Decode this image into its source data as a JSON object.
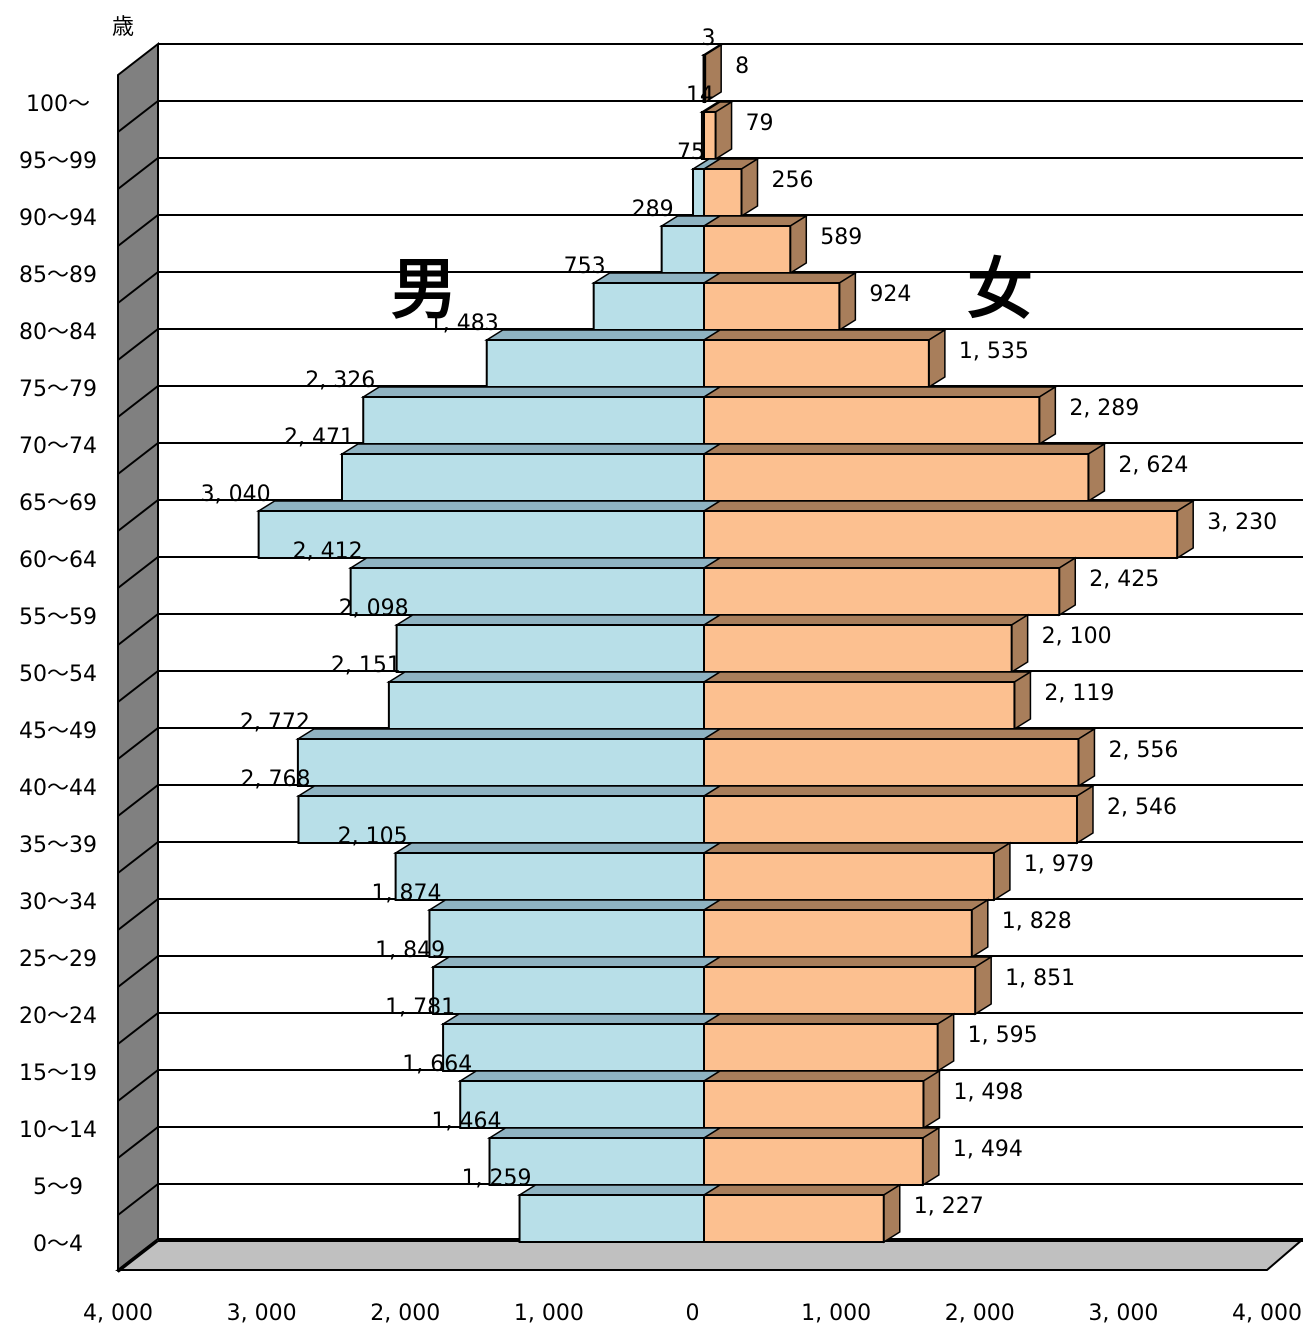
{
  "chart_data": {
    "type": "bar",
    "y_unit_label": "歳",
    "male_label": "男",
    "female_label": "女",
    "categories": [
      "100～",
      "95～99",
      "90～94",
      "85～89",
      "80～84",
      "75～79",
      "70～74",
      "65～69",
      "60～64",
      "55～59",
      "50～54",
      "45～49",
      "40～44",
      "35～39",
      "30～34",
      "25～29",
      "20～24",
      "15～19",
      "10～14",
      "5～9",
      "0～4"
    ],
    "series": [
      {
        "name": "男",
        "values": [
          3,
          14,
          75,
          289,
          753,
          1483,
          2326,
          2471,
          3040,
          2412,
          2098,
          2151,
          2772,
          2768,
          2105,
          1874,
          1849,
          1781,
          1664,
          1464,
          1259
        ],
        "value_labels": [
          "3",
          "14",
          "75",
          "289",
          "753",
          "1, 483",
          "2, 326",
          "2, 471",
          "3, 040",
          "2, 412",
          "2, 098",
          "2, 151",
          "2, 772",
          "2, 768",
          "2, 105",
          "1, 874",
          "1, 849",
          "1, 781",
          "1, 664",
          "1, 464",
          "1, 259"
        ]
      },
      {
        "name": "女",
        "values": [
          8,
          79,
          256,
          589,
          924,
          1535,
          2289,
          2624,
          3230,
          2425,
          2100,
          2119,
          2556,
          2546,
          1979,
          1828,
          1851,
          1595,
          1498,
          1494,
          1227
        ],
        "value_labels": [
          "8",
          "79",
          "256",
          "589",
          "924",
          "1, 535",
          "2, 289",
          "2, 624",
          "3, 230",
          "2, 425",
          "2, 100",
          "2, 119",
          "2, 556",
          "2, 546",
          "1, 979",
          "1, 828",
          "1, 851",
          "1, 595",
          "1, 498",
          "1, 494",
          "1, 227"
        ]
      }
    ],
    "x_axis_ticks": [
      "4, 000",
      "3, 000",
      "2, 000",
      "1, 000",
      "0",
      "1, 000",
      "2, 000",
      "3, 000",
      "4, 000"
    ],
    "xlim": [
      -4000,
      4000
    ],
    "grid": true,
    "colors": {
      "male_front": "#b8dfe8",
      "male_top": "#8fb3c2",
      "female_front": "#fcc090",
      "female_side": "#a87e5b",
      "wall": "#808080",
      "floor": "#c0c0c0"
    }
  }
}
